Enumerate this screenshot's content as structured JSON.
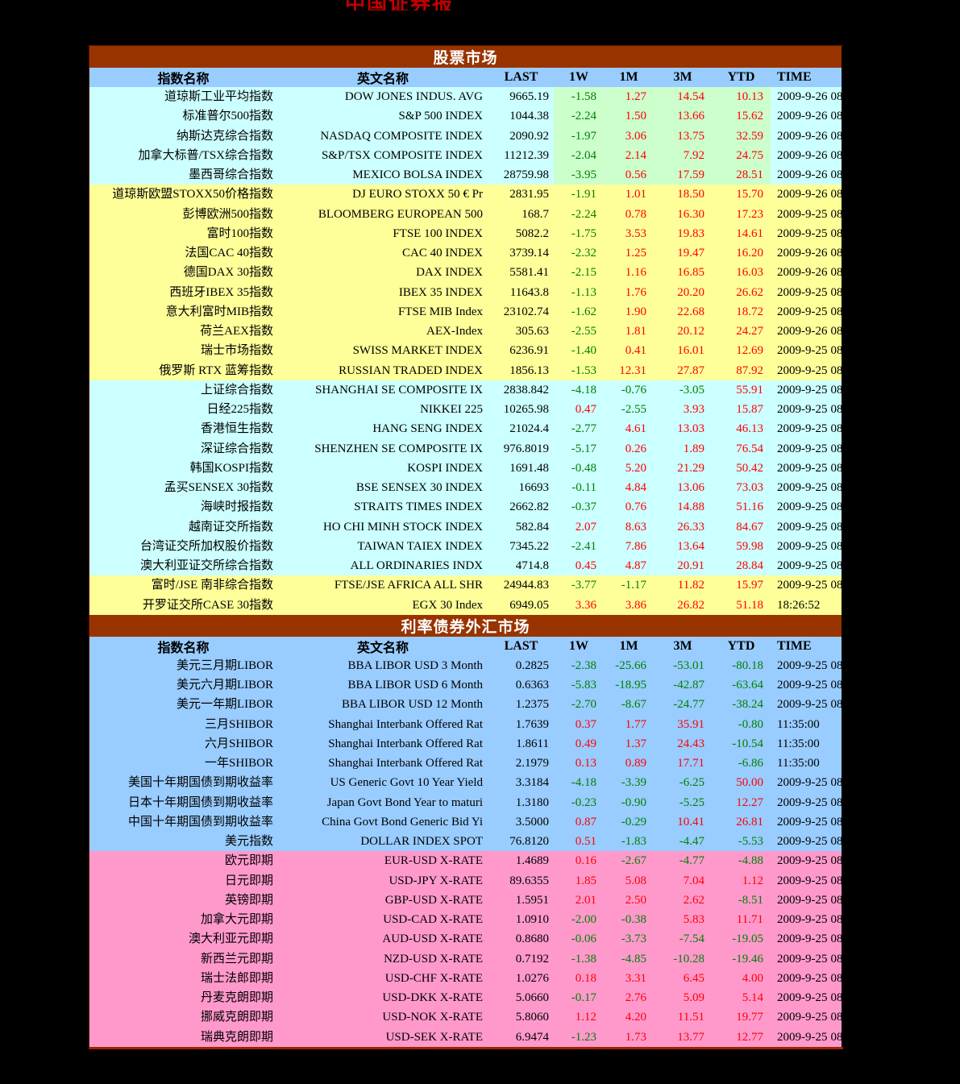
{
  "page_background": "#000000",
  "top_partial_headline": "中国证券报",
  "ui": {
    "time_overflow": "08",
    "column_keys": [
      "index-name",
      "english-name",
      "last",
      "1w",
      "1m",
      "3m",
      "ytd",
      "time"
    ],
    "cell_names": [
      "index-name-cell",
      "english-name-cell",
      "last-cell",
      "1w-change-cell",
      "1m-change-cell",
      "3m-change-cell",
      "ytd-change-cell",
      "time-cell"
    ]
  },
  "colors": {
    "section_header_bg": "#993300",
    "section_header_text": "#ffffff",
    "column_header_bg": "#99ccff",
    "us_band_bg": "#ccffff",
    "us_band_mid_bg": "#ccffcc",
    "europe_band_bg": "#ffff99",
    "asia_band_bg": "#ccffff",
    "africa_band_bg": "#ffff99",
    "rates_band_bg": "#99ccff",
    "fx_band_bg": "#ff99cc",
    "positive_value": "#ff0000",
    "negative_value": "#008000",
    "neutral_text": "#000000",
    "page_bg": "#000000"
  },
  "chart_data": [
    {
      "type": "table",
      "title": "股票市场",
      "columns": [
        "指数名称",
        "英文名称",
        "LAST",
        "1W",
        "1M",
        "3M",
        "YTD",
        "TIME"
      ],
      "rows": [
        [
          "道琼斯工业平均指数",
          "DOW JONES INDUS. AVG",
          "9665.19",
          "-1.58",
          "1.27",
          "14.54",
          "10.13",
          "2009-9-26",
          "us"
        ],
        [
          "标准普尔500指数",
          "S&P 500 INDEX",
          "1044.38",
          "-2.24",
          "1.50",
          "13.66",
          "15.62",
          "2009-9-26",
          "us"
        ],
        [
          "纳斯达克综合指数",
          "NASDAQ COMPOSITE INDEX",
          "2090.92",
          "-1.97",
          "3.06",
          "13.75",
          "32.59",
          "2009-9-26",
          "us"
        ],
        [
          "加拿大标普/TSX综合指数",
          "S&P/TSX COMPOSITE INDEX",
          "11212.39",
          "-2.04",
          "2.14",
          "7.92",
          "24.75",
          "2009-9-26",
          "us"
        ],
        [
          "墨西哥综合指数",
          "MEXICO BOLSA INDEX",
          "28759.98",
          "-3.95",
          "0.56",
          "17.59",
          "28.51",
          "2009-9-26",
          "us"
        ],
        [
          "道琼斯欧盟STOXX50价格指数",
          "DJ EURO STOXX 50 € Pr",
          "2831.95",
          "-1.91",
          "1.01",
          "18.50",
          "15.70",
          "2009-9-26",
          "eu"
        ],
        [
          "彭博欧洲500指数",
          "BLOOMBERG EUROPEAN 500",
          "168.7",
          "-2.24",
          "0.78",
          "16.30",
          "17.23",
          "2009-9-25",
          "eu"
        ],
        [
          "富时100指数",
          "FTSE 100 INDEX",
          "5082.2",
          "-1.75",
          "3.53",
          "19.83",
          "14.61",
          "2009-9-25",
          "eu"
        ],
        [
          "法国CAC 40指数",
          "CAC 40 INDEX",
          "3739.14",
          "-2.32",
          "1.25",
          "19.47",
          "16.20",
          "2009-9-26",
          "eu"
        ],
        [
          "德国DAX 30指数",
          "DAX INDEX",
          "5581.41",
          "-2.15",
          "1.16",
          "16.85",
          "16.03",
          "2009-9-26",
          "eu"
        ],
        [
          "西班牙IBEX 35指数",
          "IBEX 35 INDEX",
          "11643.8",
          "-1.13",
          "1.76",
          "20.20",
          "26.62",
          "2009-9-25",
          "eu"
        ],
        [
          "意大利富时MIB指数",
          "FTSE MIB Index",
          "23102.74",
          "-1.62",
          "1.90",
          "22.68",
          "18.72",
          "2009-9-25",
          "eu"
        ],
        [
          "荷兰AEX指数",
          "AEX-Index",
          "305.63",
          "-2.55",
          "1.81",
          "20.12",
          "24.27",
          "2009-9-26",
          "eu"
        ],
        [
          "瑞士市场指数",
          "SWISS MARKET INDEX",
          "6236.91",
          "-1.40",
          "0.41",
          "16.01",
          "12.69",
          "2009-9-25",
          "eu"
        ],
        [
          "俄罗斯 RTX 蓝筹指数",
          "RUSSIAN TRADED INDEX",
          "1856.13",
          "-1.53",
          "12.31",
          "27.87",
          "87.92",
          "2009-9-25",
          "eu"
        ],
        [
          "上证综合指数",
          "SHANGHAI SE COMPOSITE IX",
          "2838.842",
          "-4.18",
          "-0.76",
          "-3.05",
          "55.91",
          "2009-9-25",
          "asia"
        ],
        [
          "日经225指数",
          "NIKKEI 225",
          "10265.98",
          "0.47",
          "-2.55",
          "3.93",
          "15.87",
          "2009-9-25",
          "asia"
        ],
        [
          "香港恒生指数",
          "HANG SENG INDEX",
          "21024.4",
          "-2.77",
          "4.61",
          "13.03",
          "46.13",
          "2009-9-25",
          "asia"
        ],
        [
          "深证综合指数",
          "SHENZHEN SE COMPOSITE IX",
          "976.8019",
          "-5.17",
          "0.26",
          "1.89",
          "76.54",
          "2009-9-25",
          "asia"
        ],
        [
          "韩国KOSPI指数",
          "KOSPI INDEX",
          "1691.48",
          "-0.48",
          "5.20",
          "21.29",
          "50.42",
          "2009-9-25",
          "asia"
        ],
        [
          "孟买SENSEX 30指数",
          "BSE SENSEX 30 INDEX",
          "16693",
          "-0.11",
          "4.84",
          "13.06",
          "73.03",
          "2009-9-25",
          "asia"
        ],
        [
          "海峡时报指数",
          "STRAITS TIMES INDEX",
          "2662.82",
          "-0.37",
          "0.76",
          "14.88",
          "51.16",
          "2009-9-25",
          "asia"
        ],
        [
          "越南证交所指数",
          "HO CHI MINH STOCK INDEX",
          "582.84",
          "2.07",
          "8.63",
          "26.33",
          "84.67",
          "2009-9-25",
          "asia"
        ],
        [
          "台湾证交所加权股价指数",
          "TAIWAN TAIEX INDEX",
          "7345.22",
          "-2.41",
          "7.86",
          "13.64",
          "59.98",
          "2009-9-25",
          "asia"
        ],
        [
          "澳大利亚证交所综合指数",
          "ALL ORDINARIES INDX",
          "4714.8",
          "0.45",
          "4.87",
          "20.91",
          "28.84",
          "2009-9-25",
          "asia"
        ],
        [
          "富时/JSE 南非综合指数",
          "FTSE/JSE AFRICA ALL SHR",
          "24944.83",
          "-3.77",
          "-1.17",
          "11.82",
          "15.97",
          "2009-9-25",
          "africa"
        ],
        [
          "开罗证交所CASE 30指数",
          "EGX 30 Index",
          "6949.05",
          "3.36",
          "3.86",
          "26.82",
          "51.18",
          "18:26:52",
          "africa"
        ]
      ]
    },
    {
      "type": "table",
      "title": "利率债券外汇市场",
      "columns": [
        "指数名称",
        "英文名称",
        "LAST",
        "1W",
        "1M",
        "3M",
        "YTD",
        "TIME"
      ],
      "rows": [
        [
          "美元三月期LIBOR",
          "BBA LIBOR USD 3 Month",
          "0.2825",
          "-2.38",
          "-25.66",
          "-53.01",
          "-80.18",
          "2009-9-25",
          "rates"
        ],
        [
          "美元六月期LIBOR",
          "BBA LIBOR USD 6 Month",
          "0.6363",
          "-5.83",
          "-18.95",
          "-42.87",
          "-63.64",
          "2009-9-25",
          "rates"
        ],
        [
          "美元一年期LIBOR",
          "BBA LIBOR USD 12 Month",
          "1.2375",
          "-2.70",
          "-8.67",
          "-24.77",
          "-38.24",
          "2009-9-25",
          "rates"
        ],
        [
          "三月SHIBOR",
          "Shanghai Interbank Offered Rat",
          "1.7639",
          "0.37",
          "1.77",
          "35.91",
          "-0.80",
          "11:35:00",
          "rates"
        ],
        [
          "六月SHIBOR",
          "Shanghai Interbank Offered Rat",
          "1.8611",
          "0.49",
          "1.37",
          "24.43",
          "-10.54",
          "11:35:00",
          "rates"
        ],
        [
          "一年SHIBOR",
          "Shanghai Interbank Offered Rat",
          "2.1979",
          "0.13",
          "0.89",
          "17.71",
          "-6.86",
          "11:35:00",
          "rates"
        ],
        [
          "美国十年期国债到期收益率",
          "US Generic Govt 10 Year Yield",
          "3.3184",
          "-4.18",
          "-3.39",
          "-6.25",
          "50.00",
          "2009-9-25",
          "rates"
        ],
        [
          "日本十年期国债到期收益率",
          "Japan Govt Bond Year to maturi",
          "1.3180",
          "-0.23",
          "-0.90",
          "-5.25",
          "12.27",
          "2009-9-25",
          "rates"
        ],
        [
          "中国十年期国债到期收益率",
          "China Govt Bond Generic Bid Yi",
          "3.5000",
          "0.87",
          "-0.29",
          "10.41",
          "26.81",
          "2009-9-25",
          "rates"
        ],
        [
          "美元指数",
          "DOLLAR INDEX SPOT",
          "76.8120",
          "0.51",
          "-1.83",
          "-4.47",
          "-5.53",
          "2009-9-25",
          "rates"
        ],
        [
          "欧元即期",
          "EUR-USD X-RATE",
          "1.4689",
          "0.16",
          "-2.67",
          "-4.77",
          "-4.88",
          "2009-9-25",
          "fx"
        ],
        [
          "日元即期",
          "USD-JPY X-RATE",
          "89.6355",
          "1.85",
          "5.08",
          "7.04",
          "1.12",
          "2009-9-25",
          "fx"
        ],
        [
          "英镑即期",
          "GBP-USD X-RATE",
          "1.5951",
          "2.01",
          "2.50",
          "2.62",
          "-8.51",
          "2009-9-25",
          "fx"
        ],
        [
          "加拿大元即期",
          "USD-CAD X-RATE",
          "1.0910",
          "-2.00",
          "-0.38",
          "5.83",
          "11.71",
          "2009-9-25",
          "fx"
        ],
        [
          "澳大利亚元即期",
          "AUD-USD X-RATE",
          "0.8680",
          "-0.06",
          "-3.73",
          "-7.54",
          "-19.05",
          "2009-9-25",
          "fx"
        ],
        [
          "新西兰元即期",
          "NZD-USD X-RATE",
          "0.7192",
          "-1.38",
          "-4.85",
          "-10.28",
          "-19.46",
          "2009-9-25",
          "fx"
        ],
        [
          "瑞士法郎即期",
          "USD-CHF X-RATE",
          "1.0276",
          "0.18",
          "3.31",
          "6.45",
          "4.00",
          "2009-9-25",
          "fx"
        ],
        [
          "丹麦克朗即期",
          "USD-DKK X-RATE",
          "5.0660",
          "-0.17",
          "2.76",
          "5.09",
          "5.14",
          "2009-9-25",
          "fx"
        ],
        [
          "挪威克朗即期",
          "USD-NOK X-RATE",
          "5.8060",
          "1.12",
          "4.20",
          "11.51",
          "19.77",
          "2009-9-25",
          "fx"
        ],
        [
          "瑞典克朗即期",
          "USD-SEK X-RATE",
          "6.9474",
          "-1.23",
          "1.73",
          "13.77",
          "12.77",
          "2009-9-25",
          "fx"
        ]
      ]
    }
  ]
}
